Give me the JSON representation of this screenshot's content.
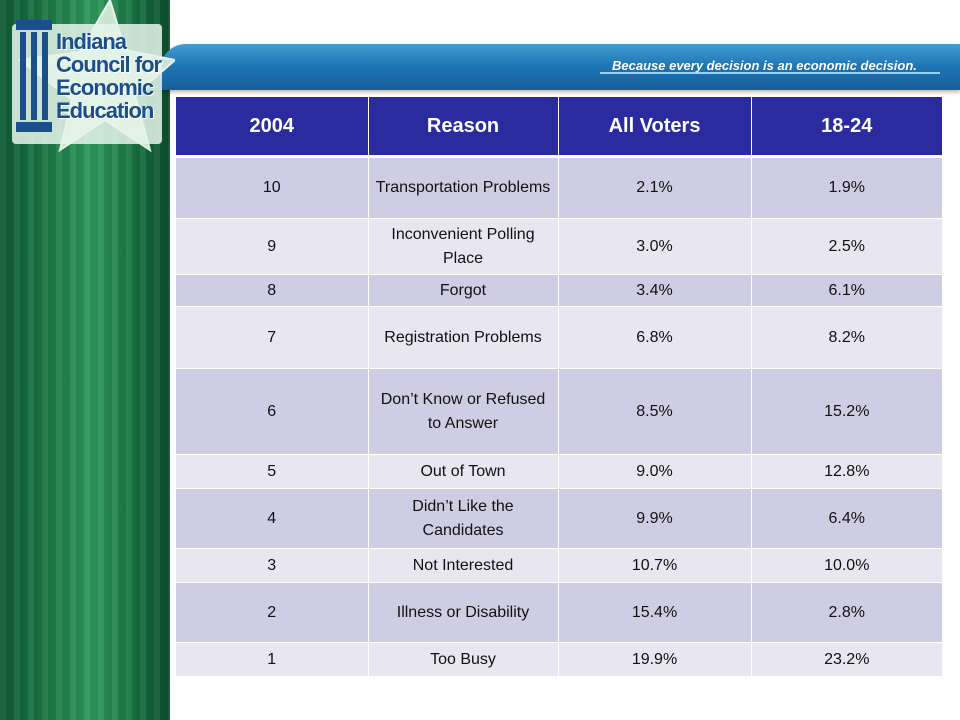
{
  "header": {
    "org_line1": "Indiana",
    "org_line2": "Council for",
    "org_line3": "Economic",
    "org_line4": "Education",
    "tagline": "Because every decision is an economic decision."
  },
  "colors": {
    "header_bg": "#2b2ba0",
    "row_dark": "#cfcde3",
    "row_light": "#e7e6f1",
    "banner": "#1f74b4",
    "sidebar_green": "#1d7a47"
  },
  "table": {
    "columns": [
      "2004",
      "Reason",
      "All Voters",
      "18-24"
    ],
    "rows": [
      {
        "rank": "10",
        "reason": "Transportation Problems",
        "all": "2.1%",
        "young": "1.9%"
      },
      {
        "rank": "9",
        "reason": "Inconvenient Polling Place",
        "all": "3.0%",
        "young": "2.5%"
      },
      {
        "rank": "8",
        "reason": "Forgot",
        "all": "3.4%",
        "young": "6.1%"
      },
      {
        "rank": "7",
        "reason": "Registration Problems",
        "all": "6.8%",
        "young": "8.2%"
      },
      {
        "rank": "6",
        "reason": "Don’t Know or Refused to Answer",
        "all": "8.5%",
        "young": "15.2%"
      },
      {
        "rank": "5",
        "reason": "Out of Town",
        "all": "9.0%",
        "young": "12.8%"
      },
      {
        "rank": "4",
        "reason": "Didn’t Like the Candidates",
        "all": "9.9%",
        "young": "6.4%"
      },
      {
        "rank": "3",
        "reason": "Not Interested",
        "all": "10.7%",
        "young": "10.0%"
      },
      {
        "rank": "2",
        "reason": "Illness or Disability",
        "all": "15.4%",
        "young": "2.8%"
      },
      {
        "rank": "1",
        "reason": "Too Busy",
        "all": "19.9%",
        "young": "23.2%"
      }
    ]
  }
}
